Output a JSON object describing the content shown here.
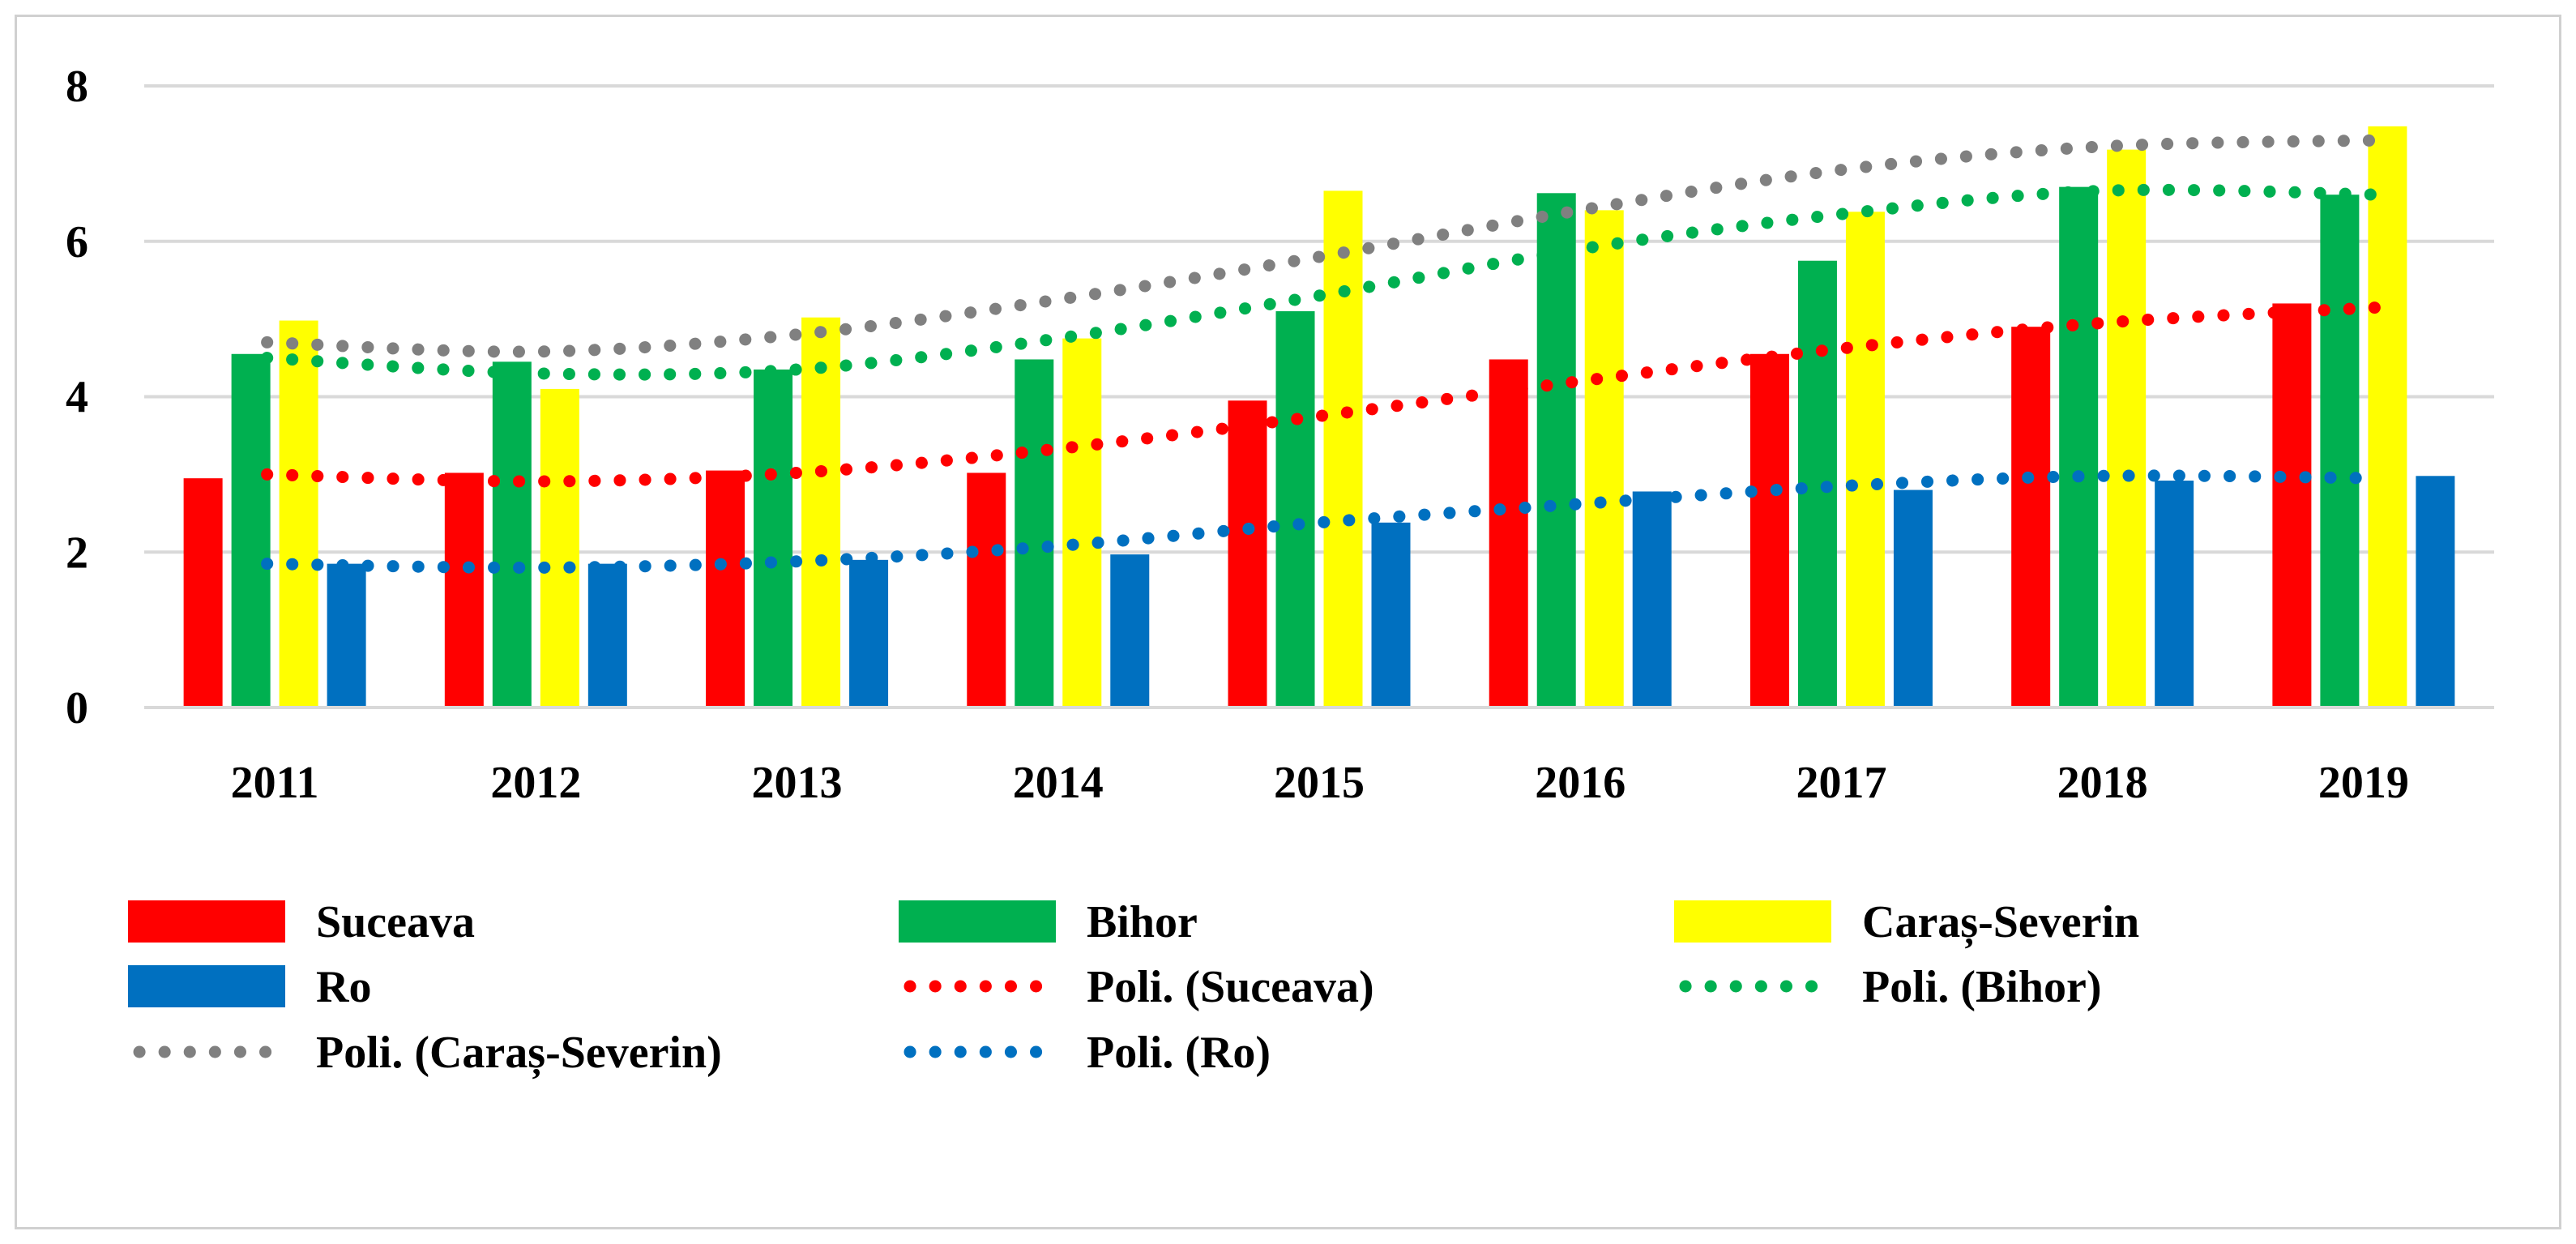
{
  "chart_data": {
    "type": "bar",
    "title": "",
    "xlabel": "",
    "ylabel": "",
    "categories": [
      "2011",
      "2012",
      "2013",
      "2014",
      "2015",
      "2016",
      "2017",
      "2018",
      "2019"
    ],
    "ylim": [
      0,
      8
    ],
    "yticks": [
      "0",
      "2",
      "4",
      "6",
      "8"
    ],
    "grid": true,
    "legend_position": "bottom",
    "series": [
      {
        "name": "Suceava",
        "color": "#ff0000",
        "values": [
          2.95,
          3.02,
          3.05,
          3.02,
          3.95,
          4.48,
          4.55,
          4.9,
          5.2
        ]
      },
      {
        "name": "Bihor",
        "color": "#00b050",
        "values": [
          4.55,
          4.45,
          4.35,
          4.48,
          5.1,
          6.62,
          5.75,
          6.7,
          6.6
        ]
      },
      {
        "name": "Caraș-Severin",
        "color": "#ffff00",
        "values": [
          4.98,
          4.1,
          5.02,
          4.75,
          6.65,
          6.4,
          6.38,
          7.18,
          7.48
        ]
      },
      {
        "name": "Ro",
        "color": "#0070c0",
        "values": [
          1.85,
          1.85,
          1.9,
          1.97,
          2.38,
          2.78,
          2.8,
          2.92,
          2.98
        ]
      }
    ],
    "trendlines": [
      {
        "name": "Poli. (Suceava)",
        "color": "#ff0000",
        "values": [
          3.0,
          2.91,
          3.02,
          3.33,
          3.75,
          4.2,
          4.62,
          4.95,
          5.15
        ]
      },
      {
        "name": "Poli. (Bihor)",
        "color": "#00b050",
        "values": [
          4.5,
          4.3,
          4.35,
          4.75,
          5.3,
          5.9,
          6.35,
          6.65,
          6.6
        ]
      },
      {
        "name": "Poli. (Caraș-Severin)",
        "color": "#808080",
        "values": [
          4.7,
          4.58,
          4.8,
          5.25,
          5.8,
          6.4,
          6.92,
          7.22,
          7.3
        ]
      },
      {
        "name": "Poli. (Ro)",
        "color": "#0070c0",
        "values": [
          1.85,
          1.8,
          1.88,
          2.08,
          2.38,
          2.62,
          2.85,
          2.98,
          2.95
        ]
      }
    ]
  }
}
